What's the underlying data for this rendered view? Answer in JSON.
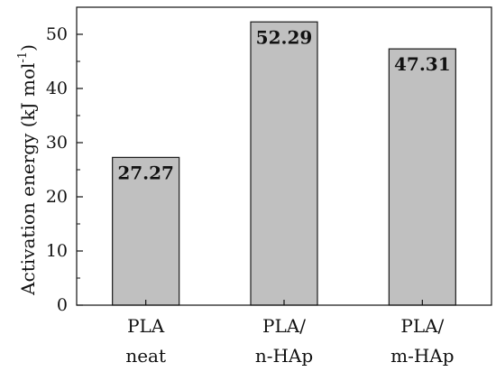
{
  "chart_data": {
    "type": "bar",
    "categories": [
      [
        "PLA",
        "neat"
      ],
      [
        "PLA/",
        "n-HAp"
      ],
      [
        "PLA/",
        "m-HAp"
      ]
    ],
    "values": [
      27.27,
      52.29,
      47.31
    ],
    "data_labels": [
      "27.27",
      "52.29",
      "47.31"
    ],
    "title": "",
    "xlabel": "",
    "ylabel": "Activation energy (kJ mol",
    "ylabel_superscript": "-1",
    "ylabel_suffix": ")",
    "ylim": [
      0,
      55
    ],
    "yticks": [
      0,
      10,
      20,
      30,
      40,
      50
    ],
    "ytick_labels": [
      "0",
      "10",
      "20",
      "30",
      "40",
      "50"
    ],
    "grid": false,
    "bar_color": "#c0c0c0",
    "bar_edge_color": "#1a1a1a"
  }
}
